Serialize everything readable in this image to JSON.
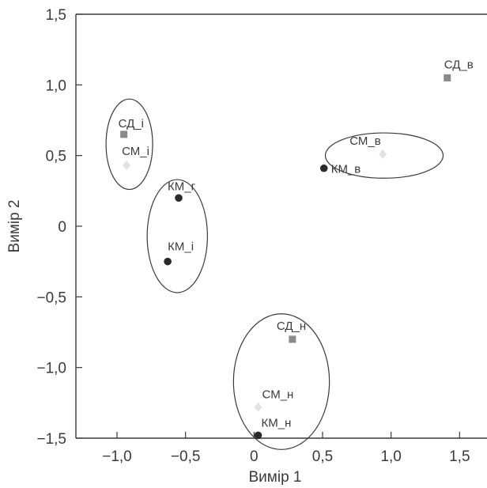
{
  "chart_data": {
    "type": "scatter",
    "title": "",
    "xlabel": "Вимір 1",
    "ylabel": "Вимір 2",
    "xlim": [
      -1.3,
      1.7
    ],
    "ylim": [
      -1.5,
      1.5
    ],
    "xticks": [
      -1.0,
      -0.5,
      0,
      0.5,
      1.0,
      1.5
    ],
    "xtick_labels": [
      "−1,0",
      "−0,5",
      "0",
      "0,5",
      "1,0",
      "1,5"
    ],
    "yticks": [
      1.5,
      1.0,
      0.5,
      0,
      -0.5,
      -1.0,
      -1.5
    ],
    "ytick_labels": [
      "1,5",
      "1,0",
      "0,5",
      "0",
      "−0,5",
      "−1,0",
      "−1,5"
    ],
    "grid": false,
    "legend": "none",
    "series": [
      {
        "marker": "square",
        "color": "#8a8a8a",
        "points": [
          {
            "label": "СД_і",
            "x": -0.95,
            "y": 0.65
          },
          {
            "label": "СД_в",
            "x": 1.41,
            "y": 1.05
          },
          {
            "label": "СД_н",
            "x": 0.28,
            "y": -0.8
          }
        ]
      },
      {
        "marker": "diamond",
        "color": "#e2e2e2",
        "points": [
          {
            "label": "СМ_і",
            "x": -0.93,
            "y": 0.43
          },
          {
            "label": "СМ_в",
            "x": 0.94,
            "y": 0.51
          },
          {
            "label": "СМ_н",
            "x": 0.03,
            "y": -1.28
          }
        ]
      },
      {
        "marker": "circle",
        "color": "#2a2a2a",
        "points": [
          {
            "label": "КМ_г",
            "x": -0.55,
            "y": 0.2
          },
          {
            "label": "КМ_і",
            "x": -0.63,
            "y": -0.25
          },
          {
            "label": "КМ_в",
            "x": 0.51,
            "y": 0.41
          },
          {
            "label": "КМ_н",
            "x": 0.03,
            "y": -1.48
          }
        ]
      }
    ],
    "ellipses": [
      {
        "cx": -0.91,
        "cy": 0.58,
        "rx": 0.17,
        "ry": 0.32
      },
      {
        "cx": -0.56,
        "cy": -0.07,
        "rx": 0.22,
        "ry": 0.4
      },
      {
        "cx": 0.95,
        "cy": 0.5,
        "rx": 0.43,
        "ry": 0.16
      },
      {
        "cx": 0.2,
        "cy": -1.1,
        "rx": 0.35,
        "ry": 0.48
      }
    ],
    "colors": {
      "axis": "#3a3a3a",
      "ellipse": "#3a3a3a"
    }
  }
}
